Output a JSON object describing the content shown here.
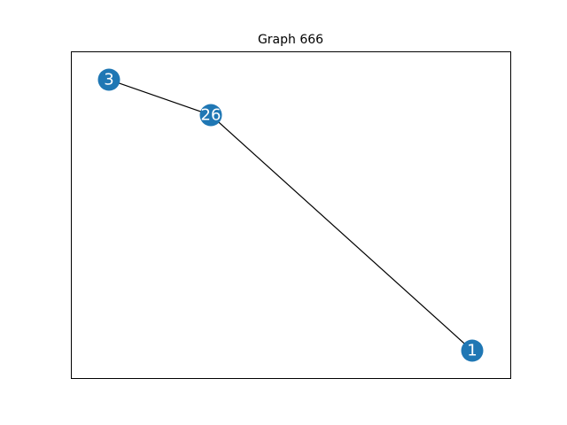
{
  "title": "Graph 666",
  "colors": {
    "node_fill": "#1f77b4",
    "node_label": "#ffffff",
    "edge": "#000000",
    "frame": "#000000",
    "background": "#ffffff"
  },
  "graph": {
    "nodes": [
      {
        "id": "3",
        "label": "3"
      },
      {
        "id": "26",
        "label": "26"
      },
      {
        "id": "1",
        "label": "1"
      }
    ],
    "edges": [
      {
        "source": "3",
        "target": "26"
      },
      {
        "source": "26",
        "target": "1"
      }
    ]
  }
}
